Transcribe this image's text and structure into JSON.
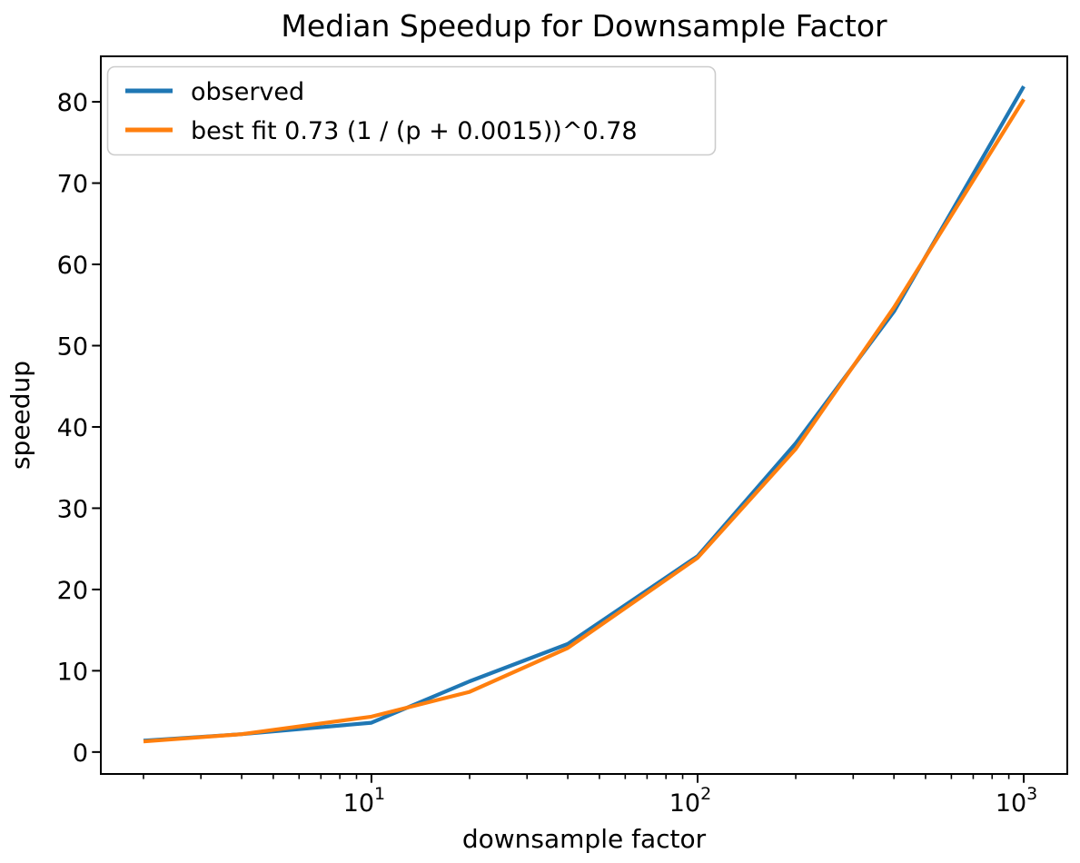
{
  "chart_data": {
    "type": "line",
    "title": "Median Speedup for Downsample Factor",
    "xlabel": "downsample factor",
    "ylabel": "speedup",
    "xscale": "log",
    "xlim": [
      1.48,
      1360
    ],
    "ylim": [
      -2.7,
      85.6
    ],
    "x_major_ticks": [
      10,
      100,
      1000
    ],
    "x_minor_ticks": [
      2,
      3,
      4,
      5,
      6,
      7,
      8,
      9,
      20,
      30,
      40,
      50,
      60,
      70,
      80,
      90,
      200,
      300,
      400,
      500,
      600,
      700,
      800,
      900
    ],
    "y_ticks": [
      0,
      10,
      20,
      30,
      40,
      50,
      60,
      70,
      80
    ],
    "grid": false,
    "legend_position": "upper left",
    "x": [
      2,
      4,
      10,
      20,
      40,
      100,
      200,
      400,
      1000
    ],
    "series": [
      {
        "name": "observed",
        "color": "#1f77b4",
        "values": [
          1.4,
          2.2,
          3.6,
          8.7,
          13.3,
          24.1,
          38.0,
          54.2,
          81.9
        ]
      },
      {
        "name": "best fit 0.73 (1 / (p + 0.0015))^0.78",
        "color": "#ff7f0e",
        "values": [
          1.3,
          2.2,
          4.35,
          7.4,
          12.8,
          23.9,
          37.3,
          54.7,
          80.3
        ]
      }
    ]
  }
}
